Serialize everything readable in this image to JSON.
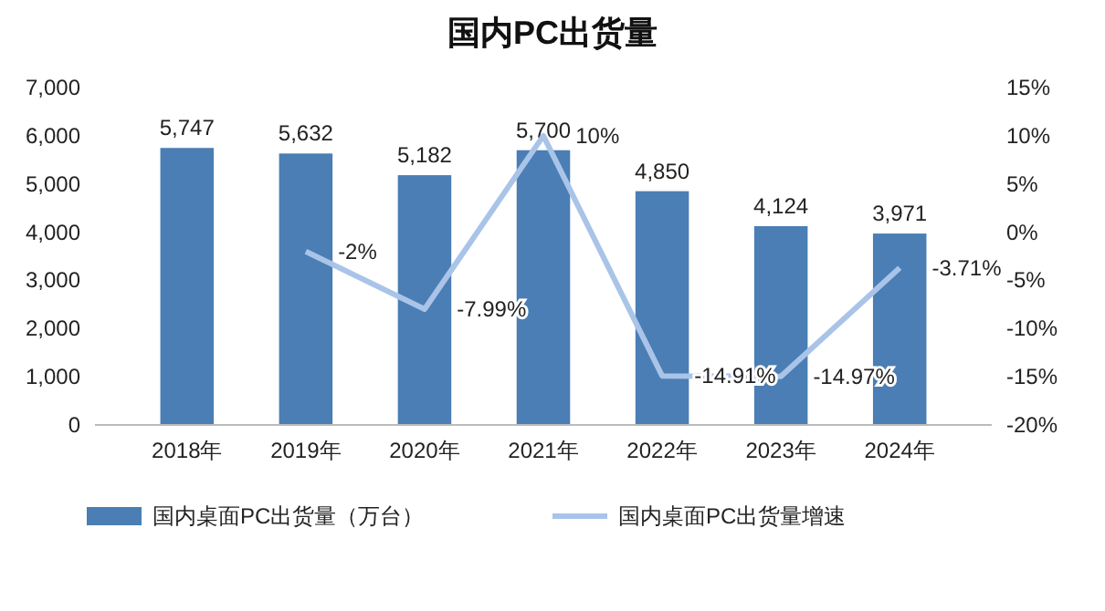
{
  "chart_data": {
    "type": "bar",
    "title": "国内PC出货量",
    "categories": [
      "2018年",
      "2019年",
      "2020年",
      "2021年",
      "2022年",
      "2023年",
      "2024年"
    ],
    "series": [
      {
        "name": "国内桌面PC出货量（万台）",
        "color": "#4a7eb4",
        "values": [
          5747,
          5632,
          5182,
          5700,
          4850,
          4124,
          3971
        ],
        "value_labels": [
          "5,747",
          "5,632",
          "5,182",
          "5,700",
          "4,850",
          "4,124",
          "3,971"
        ]
      },
      {
        "name": "国内桌面PC出货量增速",
        "type": "line",
        "axis": "y2",
        "color": "#a9c4e8",
        "values": [
          null,
          -2,
          -7.99,
          10,
          -14.91,
          -14.97,
          -3.71
        ],
        "value_labels": [
          null,
          "-2%",
          "-7.99%",
          "10%",
          "-14.91%",
          "-14.97%",
          "-3.71%"
        ]
      }
    ],
    "ylim": [
      0,
      7000
    ],
    "yticks": [
      0,
      {
        "value": 1000,
        "label": "1,000"
      },
      {
        "value": 2000,
        "label": "2,000"
      },
      {
        "value": 3000,
        "label": "3,000"
      },
      {
        "value": 4000,
        "label": "4,000"
      },
      {
        "value": 5000,
        "label": "5,000"
      },
      {
        "value": 6000,
        "label": "6,000"
      },
      {
        "value": 7000,
        "label": "7,000"
      }
    ],
    "y2lim": [
      -20,
      15
    ],
    "y2ticks": [
      {
        "value": -20,
        "label": "-20%"
      },
      {
        "value": -15,
        "label": "-15%"
      },
      {
        "value": -10,
        "label": "-10%"
      },
      {
        "value": -5,
        "label": "-5%"
      },
      {
        "value": 0,
        "label": "0%"
      },
      {
        "value": 5,
        "label": "5%"
      },
      {
        "value": 10,
        "label": "10%"
      },
      {
        "value": 15,
        "label": "15%"
      }
    ],
    "legend": "bottom",
    "marker": "none",
    "line_style": "solid"
  }
}
